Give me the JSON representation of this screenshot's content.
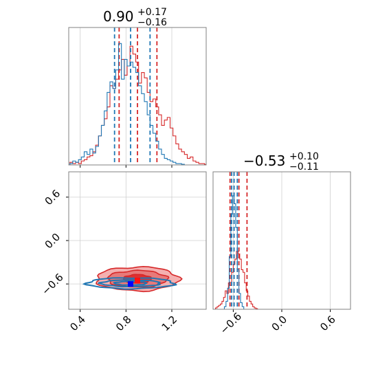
{
  "colors": {
    "red": "#d62728",
    "blue": "#1f77b4",
    "red_fill_light": "#f4b0b0",
    "red_fill_mid": "#e77a7a",
    "red_fill_dark": "#e03030",
    "grid": "#cfcfcf",
    "frame": "#808080",
    "marker_red": "#ff1010",
    "marker_blue": "#0000ff"
  },
  "chart_data": [
    {
      "type": "histogram",
      "panel": "top-left marginal (parameter 1)",
      "title": {
        "base": "0.90",
        "sup": "+0.17",
        "sub": "−0.16"
      },
      "xlim": [
        0.3,
        1.5
      ],
      "ylim": [
        0,
        1
      ],
      "xticks": [
        0.4,
        0.8,
        1.2
      ],
      "show_tick_labels": false,
      "grid": true,
      "bin_width": 0.025,
      "series": [
        {
          "name": "red",
          "color_key": "red",
          "bin_start": 0.31,
          "counts": [
            0.02,
            0.01,
            0.02,
            0.01,
            0.03,
            0.04,
            0.06,
            0.07,
            0.1,
            0.15,
            0.22,
            0.3,
            0.35,
            0.44,
            0.6,
            0.58,
            0.65,
            0.72,
            0.8,
            0.68,
            0.75,
            0.9,
            0.84,
            0.78,
            0.62,
            0.7,
            0.66,
            0.55,
            0.48,
            0.5,
            0.44,
            0.38,
            0.3,
            0.34,
            0.36,
            0.28,
            0.22,
            0.16,
            0.12,
            0.1,
            0.08,
            0.05,
            0.06,
            0.03,
            0.02,
            0.01,
            0.01,
            0.005
          ],
          "quantiles": [
            0.74,
            0.9,
            1.07
          ]
        },
        {
          "name": "blue",
          "color_key": "blue",
          "bin_start": 0.31,
          "counts": [
            0.01,
            0.03,
            0.02,
            0.04,
            0.06,
            0.1,
            0.08,
            0.12,
            0.09,
            0.14,
            0.22,
            0.3,
            0.41,
            0.55,
            0.63,
            0.58,
            0.72,
            0.92,
            0.65,
            0.8,
            0.75,
            0.78,
            0.74,
            0.7,
            0.6,
            0.54,
            0.48,
            0.38,
            0.3,
            0.24,
            0.18,
            0.12,
            0.08,
            0.05,
            0.04,
            0.03,
            0.02,
            0.01,
            0.01,
            0.005,
            0.0,
            0.0,
            0.0,
            0.0,
            0.0,
            0.0,
            0.0,
            0.0
          ],
          "quantiles": [
            0.7,
            0.84,
            1.01
          ]
        }
      ]
    },
    {
      "type": "histogram",
      "panel": "bottom-right marginal (parameter 2)",
      "title": {
        "base": "−0.53",
        "sup": "+0.10",
        "sub": "−0.11"
      },
      "xlim": [
        -0.85,
        0.85
      ],
      "ylim": [
        0,
        1
      ],
      "xticks": [
        -0.6,
        0.0,
        0.6
      ],
      "xtick_labels": [
        "−0.6",
        "0.0",
        "0.6"
      ],
      "grid": true,
      "bin_width": 0.02,
      "series": [
        {
          "name": "red",
          "color_key": "red",
          "bin_start": -0.82,
          "counts": [
            0.01,
            0.02,
            0.03,
            0.04,
            0.06,
            0.09,
            0.14,
            0.12,
            0.2,
            0.18,
            0.28,
            0.34,
            0.38,
            0.44,
            0.42,
            0.38,
            0.3,
            0.28,
            0.2,
            0.14,
            0.1,
            0.06,
            0.04,
            0.02,
            0.01,
            0.005
          ],
          "quantiles": [
            -0.64,
            -0.53,
            -0.43
          ]
        },
        {
          "name": "blue",
          "color_key": "blue",
          "bin_start": -0.71,
          "counts": [
            0.02,
            0.06,
            0.16,
            0.4,
            0.72,
            0.86,
            0.8,
            0.62,
            0.3,
            0.12,
            0.05,
            0.02
          ],
          "quantiles": [
            -0.62,
            -0.59,
            -0.55
          ]
        }
      ]
    },
    {
      "type": "contour",
      "panel": "bottom-left joint (parameter 1 vs parameter 2)",
      "xlim": [
        0.3,
        1.5
      ],
      "ylim": [
        -0.95,
        0.95
      ],
      "xticks": [
        0.4,
        0.8,
        1.2
      ],
      "xtick_labels": [
        "0.4",
        "0.8",
        "1.2"
      ],
      "yticks": [
        -0.6,
        0.0,
        0.6
      ],
      "ytick_labels": [
        "−0.6",
        "0.0",
        "0.6"
      ],
      "grid": true,
      "series": [
        {
          "name": "red",
          "color_key": "red",
          "center": [
            0.9,
            -0.53
          ],
          "levels": [
            {
              "rx": 0.12,
              "ry": 0.06,
              "fill_key": "red_fill_dark"
            },
            {
              "rx": 0.26,
              "ry": 0.115,
              "fill_key": "red_fill_mid"
            },
            {
              "rx": 0.36,
              "ry": 0.165,
              "fill_key": "red_fill_light"
            }
          ],
          "marker": [
            0.9,
            -0.55
          ]
        },
        {
          "name": "blue",
          "color_key": "blue",
          "center": [
            0.84,
            -0.59
          ],
          "levels": [
            {
              "rx": 0.14,
              "ry": 0.025
            },
            {
              "rx": 0.26,
              "ry": 0.045
            },
            {
              "rx": 0.38,
              "ry": 0.075
            }
          ],
          "marker": [
            0.84,
            -0.6
          ]
        }
      ]
    }
  ]
}
